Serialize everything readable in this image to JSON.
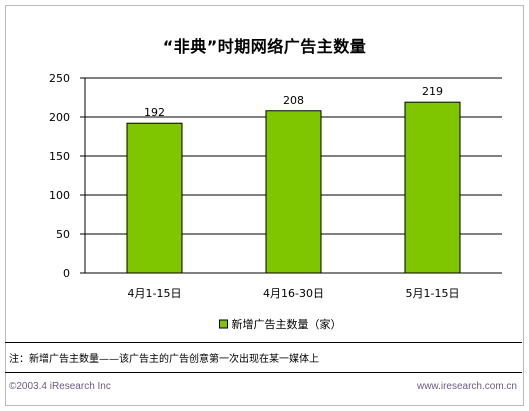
{
  "chart_data": {
    "type": "bar",
    "title": "“非典”时期网络广告主数量",
    "categories": [
      "4月1-15日",
      "4月16-30日",
      "5月1-15日"
    ],
    "series": [
      {
        "name": "新增广告主数量（家）",
        "values": [
          192,
          208,
          219
        ]
      }
    ],
    "ylim": [
      0,
      250
    ],
    "yticks": [
      0,
      50,
      100,
      150,
      200,
      250
    ],
    "grid": true,
    "legend_position": "bottom",
    "bar_color": "#7fc500"
  },
  "footnote": "注：新增广告主数量——该广告主的广告创意第一次出现在某一媒体上",
  "copyright": "©2003.4 iResearch Inc",
  "website": "www.iresearch.com.cn"
}
